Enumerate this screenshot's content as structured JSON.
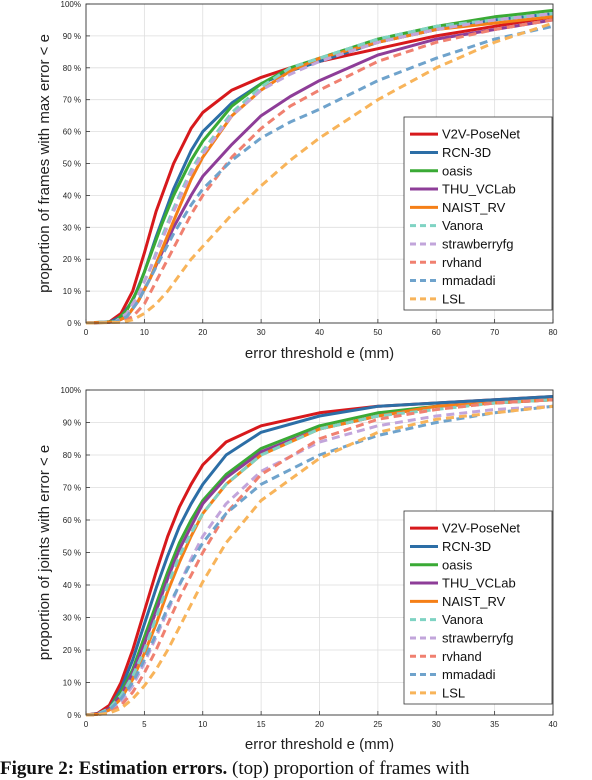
{
  "chart_data": [
    {
      "type": "line",
      "xlabel": "error threshold e (mm)",
      "ylabel": "proportion of frames with max error < e",
      "xlim": [
        0,
        80
      ],
      "ylim": [
        0,
        100
      ],
      "xticks": [
        "0",
        "10",
        "20",
        "30",
        "40",
        "50",
        "60",
        "70",
        "80"
      ],
      "yticks": [
        "0 %",
        "10 %",
        "20 %",
        "30 %",
        "40 %",
        "50 %",
        "60 %",
        "70 %",
        "80 %",
        "90 %",
        "100%"
      ],
      "grid": true,
      "legend_position": "lower-right",
      "series": [
        {
          "name": "V2V-PoseNet",
          "color": "#d7191c",
          "dash": "solid",
          "x": [
            0,
            4,
            6,
            8,
            10,
            12,
            15,
            18,
            20,
            25,
            30,
            35,
            40,
            50,
            60,
            70,
            80
          ],
          "y": [
            0,
            0.3,
            3,
            10,
            22,
            35,
            50,
            61,
            66,
            73,
            77,
            80,
            82,
            86,
            90,
            93,
            96
          ]
        },
        {
          "name": "RCN-3D",
          "color": "#2c6ea6",
          "dash": "solid",
          "x": [
            0,
            4,
            6,
            8,
            10,
            12,
            15,
            18,
            20,
            25,
            30,
            35,
            40,
            50,
            60,
            70,
            80
          ],
          "y": [
            0,
            0.2,
            2,
            7,
            16,
            27,
            42,
            54,
            60,
            69,
            75,
            79,
            82,
            88,
            92,
            95,
            97
          ]
        },
        {
          "name": "oasis",
          "color": "#3aaa35",
          "dash": "solid",
          "x": [
            0,
            5,
            7,
            9,
            11,
            13,
            15,
            18,
            20,
            25,
            30,
            35,
            40,
            50,
            60,
            70,
            80
          ],
          "y": [
            0,
            0.5,
            4,
            11,
            21,
            31,
            40,
            51,
            57,
            68,
            75,
            80,
            83,
            89,
            93,
            96,
            98
          ]
        },
        {
          "name": "THU_VCLab",
          "color": "#8e3d98",
          "dash": "solid",
          "x": [
            0,
            5,
            7,
            9,
            11,
            13,
            15,
            18,
            20,
            25,
            30,
            35,
            40,
            50,
            60,
            70,
            80
          ],
          "y": [
            0,
            0.3,
            2,
            7,
            14,
            22,
            30,
            40,
            46,
            56,
            65,
            71,
            76,
            84,
            89,
            92,
            95
          ]
        },
        {
          "name": "NAIST_RV",
          "color": "#f57f17",
          "dash": "solid",
          "x": [
            0,
            5,
            7,
            9,
            11,
            13,
            15,
            18,
            20,
            25,
            30,
            35,
            40,
            50,
            60,
            70,
            80
          ],
          "y": [
            0,
            0.3,
            2,
            7,
            14,
            23,
            32,
            45,
            52,
            65,
            73,
            79,
            83,
            88,
            92,
            94,
            96
          ]
        },
        {
          "name": "Vanora",
          "color": "#7fd3c3",
          "dash": "dashed",
          "x": [
            0,
            5,
            7,
            9,
            11,
            13,
            15,
            18,
            20,
            25,
            30,
            35,
            40,
            50,
            60,
            70,
            80
          ],
          "y": [
            0,
            0.4,
            3,
            9,
            17,
            27,
            36,
            48,
            54,
            66,
            74,
            80,
            83,
            89,
            93,
            95,
            97
          ]
        },
        {
          "name": "strawberryfg",
          "color": "#c2a5db",
          "dash": "dashed",
          "x": [
            0,
            5,
            7,
            9,
            11,
            13,
            15,
            18,
            20,
            25,
            30,
            35,
            40,
            50,
            60,
            70,
            80
          ],
          "y": [
            0,
            0.4,
            3,
            9,
            17,
            26,
            35,
            47,
            53,
            65,
            73,
            78,
            82,
            88,
            92,
            95,
            97
          ]
        },
        {
          "name": "rvhand",
          "color": "#f08070",
          "dash": "dashed",
          "x": [
            0,
            6,
            8,
            10,
            12,
            14,
            16,
            18,
            20,
            25,
            30,
            35,
            40,
            50,
            60,
            70,
            80
          ],
          "y": [
            0,
            0.3,
            2,
            6,
            13,
            20,
            27,
            34,
            40,
            52,
            61,
            68,
            73,
            82,
            88,
            92,
            95
          ]
        },
        {
          "name": "mmadadi",
          "color": "#6fa3cc",
          "dash": "dashed",
          "x": [
            0,
            5,
            7,
            9,
            11,
            13,
            15,
            18,
            20,
            25,
            30,
            35,
            40,
            50,
            60,
            70,
            80
          ],
          "y": [
            0,
            0.3,
            2,
            7,
            14,
            21,
            28,
            37,
            42,
            51,
            58,
            63,
            67,
            76,
            83,
            89,
            93
          ]
        },
        {
          "name": "LSL",
          "color": "#f8b45a",
          "dash": "dashed",
          "x": [
            0,
            6,
            8,
            10,
            12,
            14,
            16,
            18,
            20,
            25,
            30,
            35,
            40,
            50,
            60,
            70,
            80
          ],
          "y": [
            0,
            0.2,
            1,
            3,
            6,
            10,
            15,
            20,
            24,
            34,
            43,
            51,
            58,
            70,
            80,
            88,
            94
          ]
        }
      ]
    },
    {
      "type": "line",
      "xlabel": "error threshold e (mm)",
      "ylabel": "proportion of joints with error < e",
      "xlim": [
        0,
        40
      ],
      "ylim": [
        0,
        100
      ],
      "xticks": [
        "0",
        "5",
        "10",
        "15",
        "20",
        "25",
        "30",
        "35",
        "40"
      ],
      "yticks": [
        "0 %",
        "10 %",
        "20 %",
        "30 %",
        "40 %",
        "50 %",
        "60 %",
        "70 %",
        "80 %",
        "90 %",
        "100%"
      ],
      "grid": true,
      "legend_position": "lower-right",
      "series": [
        {
          "name": "V2V-PoseNet",
          "color": "#d7191c",
          "dash": "solid",
          "x": [
            0,
            1,
            2,
            3,
            4,
            5,
            6,
            7,
            8,
            9,
            10,
            12,
            15,
            20,
            25,
            30,
            35,
            40
          ],
          "y": [
            0,
            0.5,
            3,
            10,
            20,
            32,
            44,
            55,
            64,
            71,
            77,
            84,
            89,
            93,
            95,
            96,
            97,
            98
          ]
        },
        {
          "name": "RCN-3D",
          "color": "#2c6ea6",
          "dash": "solid",
          "x": [
            0,
            1,
            2,
            3,
            4,
            5,
            6,
            7,
            8,
            9,
            10,
            12,
            15,
            20,
            25,
            30,
            35,
            40
          ],
          "y": [
            0,
            0.4,
            2,
            8,
            17,
            28,
            39,
            49,
            58,
            65,
            71,
            80,
            87,
            92,
            95,
            96,
            97,
            98
          ]
        },
        {
          "name": "oasis",
          "color": "#3aaa35",
          "dash": "solid",
          "x": [
            0,
            1,
            2,
            3,
            4,
            5,
            6,
            7,
            8,
            9,
            10,
            12,
            15,
            20,
            25,
            30,
            35,
            40
          ],
          "y": [
            0,
            0.3,
            2,
            7,
            14,
            24,
            34,
            44,
            53,
            60,
            66,
            74,
            82,
            89,
            93,
            95,
            96,
            97
          ]
        },
        {
          "name": "THU_VCLab",
          "color": "#8e3d98",
          "dash": "solid",
          "x": [
            0,
            1,
            2,
            3,
            4,
            5,
            6,
            7,
            8,
            9,
            10,
            12,
            15,
            20,
            25,
            30,
            35,
            40
          ],
          "y": [
            0,
            0.3,
            2,
            6,
            13,
            22,
            32,
            42,
            51,
            58,
            65,
            73,
            81,
            88,
            92,
            95,
            96,
            97
          ]
        },
        {
          "name": "NAIST_RV",
          "color": "#f57f17",
          "dash": "solid",
          "x": [
            0,
            1,
            2,
            3,
            4,
            5,
            6,
            7,
            8,
            9,
            10,
            12,
            15,
            20,
            25,
            30,
            35,
            40
          ],
          "y": [
            0,
            0.2,
            1.5,
            5,
            11,
            19,
            28,
            38,
            47,
            55,
            62,
            71,
            80,
            88,
            92,
            95,
            96,
            97
          ]
        },
        {
          "name": "Vanora",
          "color": "#7fd3c3",
          "dash": "dashed",
          "x": [
            0,
            1,
            2,
            3,
            4,
            5,
            6,
            7,
            8,
            9,
            10,
            12,
            15,
            20,
            25,
            30,
            35,
            40
          ],
          "y": [
            0,
            0.3,
            2,
            6,
            12,
            20,
            30,
            40,
            49,
            56,
            62,
            71,
            80,
            88,
            92,
            94,
            96,
            97
          ]
        },
        {
          "name": "strawberryfg",
          "color": "#c2a5db",
          "dash": "dashed",
          "x": [
            0,
            1,
            2,
            3,
            4,
            5,
            6,
            7,
            8,
            9,
            10,
            12,
            15,
            20,
            25,
            30,
            35,
            40
          ],
          "y": [
            0,
            0.2,
            1,
            4,
            9,
            16,
            24,
            32,
            40,
            48,
            55,
            65,
            75,
            84,
            89,
            92,
            94,
            95
          ]
        },
        {
          "name": "rvhand",
          "color": "#f08070",
          "dash": "dashed",
          "x": [
            0,
            1,
            2,
            3,
            4,
            5,
            6,
            7,
            8,
            9,
            10,
            12,
            15,
            20,
            25,
            30,
            35,
            40
          ],
          "y": [
            0,
            0.1,
            0.8,
            3,
            7,
            13,
            20,
            28,
            36,
            43,
            50,
            62,
            74,
            85,
            91,
            94,
            96,
            97
          ]
        },
        {
          "name": "mmadadi",
          "color": "#6fa3cc",
          "dash": "dashed",
          "x": [
            0,
            1,
            2,
            3,
            4,
            5,
            6,
            7,
            8,
            9,
            10,
            12,
            15,
            20,
            25,
            30,
            35,
            40
          ],
          "y": [
            0,
            0.2,
            1.5,
            5,
            10,
            17,
            25,
            33,
            40,
            47,
            53,
            62,
            71,
            80,
            86,
            90,
            93,
            95
          ]
        },
        {
          "name": "LSL",
          "color": "#f8b45a",
          "dash": "dashed",
          "x": [
            0,
            1,
            2,
            3,
            4,
            5,
            6,
            7,
            8,
            9,
            10,
            12,
            15,
            20,
            25,
            30,
            35,
            40
          ],
          "y": [
            0,
            0.1,
            0.6,
            2,
            5,
            9,
            14,
            20,
            27,
            34,
            41,
            53,
            66,
            79,
            87,
            91,
            93,
            95
          ]
        }
      ]
    }
  ],
  "caption": {
    "lead": "Figure 2: Estimation errors.",
    "text": " (top) proportion of frames with"
  }
}
